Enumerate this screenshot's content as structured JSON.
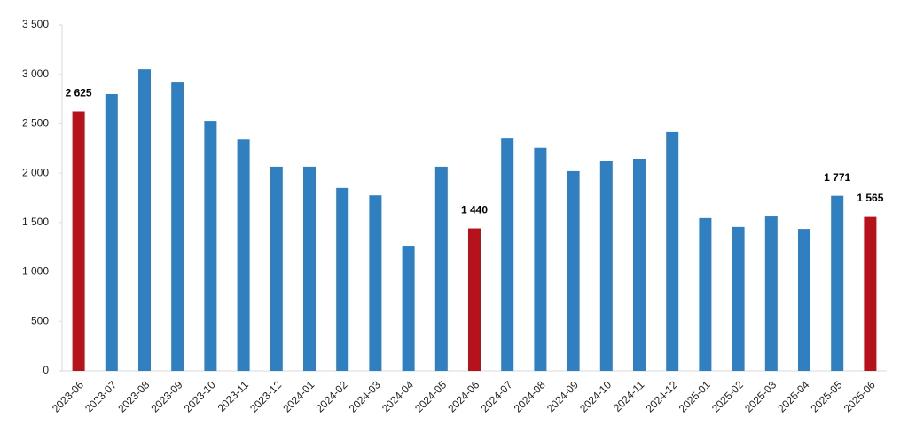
{
  "chart_data": {
    "type": "bar",
    "categories": [
      "2023-06",
      "2023-07",
      "2023-08",
      "2023-09",
      "2023-10",
      "2023-11",
      "2023-12",
      "2024-01",
      "2024-02",
      "2024-03",
      "2024-04",
      "2024-05",
      "2024-06",
      "2024-07",
      "2024-08",
      "2024-09",
      "2024-10",
      "2024-11",
      "2024-12",
      "2025-01",
      "2025-02",
      "2025-03",
      "2025-04",
      "2025-05",
      "2025-06"
    ],
    "values": [
      2625,
      2800,
      3050,
      2925,
      2530,
      2340,
      2065,
      2065,
      1850,
      1775,
      1265,
      2065,
      1440,
      2350,
      2255,
      2020,
      2120,
      2145,
      2415,
      1545,
      1455,
      1570,
      1435,
      1771,
      1565
    ],
    "value_labels": [
      "2 625",
      null,
      null,
      null,
      null,
      null,
      null,
      null,
      null,
      null,
      null,
      null,
      "1 440",
      null,
      null,
      null,
      null,
      null,
      null,
      null,
      null,
      null,
      null,
      "1 771",
      "1 565"
    ],
    "colors": [
      "#b5121b",
      "#2f7fc1",
      "#2f7fc1",
      "#2f7fc1",
      "#2f7fc1",
      "#2f7fc1",
      "#2f7fc1",
      "#2f7fc1",
      "#2f7fc1",
      "#2f7fc1",
      "#2f7fc1",
      "#2f7fc1",
      "#b5121b",
      "#2f7fc1",
      "#2f7fc1",
      "#2f7fc1",
      "#2f7fc1",
      "#2f7fc1",
      "#2f7fc1",
      "#2f7fc1",
      "#2f7fc1",
      "#2f7fc1",
      "#2f7fc1",
      "#2f7fc1",
      "#b5121b"
    ],
    "ylim": [
      0,
      3500
    ],
    "yticks": [
      0,
      500,
      {
        "value": 1000,
        "label": "1 000"
      },
      {
        "value": 1500,
        "label": "1 500"
      },
      {
        "value": 2000,
        "label": "2 000"
      },
      {
        "value": 2500,
        "label": "2 500"
      },
      {
        "value": 3000,
        "label": "3 000"
      },
      {
        "value": 3500,
        "label": "3 500"
      }
    ],
    "grid": false
  }
}
